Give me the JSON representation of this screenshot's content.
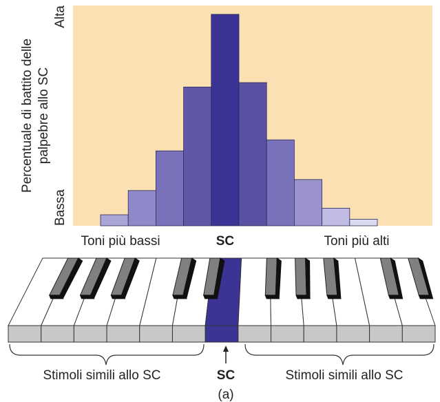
{
  "chart_data": {
    "type": "bar",
    "categories": [
      null,
      null,
      null,
      null,
      "SC",
      null,
      null,
      null,
      null,
      null
    ],
    "values": [
      5,
      16,
      34,
      63,
      96,
      65,
      39,
      21,
      8,
      3
    ],
    "colors": [
      "#aaa4d7",
      "#9089c9",
      "#7a71bb",
      "#6157a9",
      "#3b3494",
      "#5a50a4",
      "#7a71bb",
      "#9a93cc",
      "#bfbbe2",
      "#dcdaf0"
    ],
    "background": "#fbe0b4",
    "ylim": [
      0,
      100
    ],
    "yticks": [
      {
        "value": 0,
        "label": "Bassa"
      },
      {
        "value": 100,
        "label": "Alta"
      }
    ],
    "y_label": [
      "Percentuale di battito delle",
      "palpebre allo SC"
    ],
    "annotations": [
      "Toni più bassi",
      "Toni più alti"
    ]
  },
  "keyboard": {
    "left_label": "Stimoli simili allo SC",
    "center_label": "SC",
    "right_label": "Stimoli simili allo SC",
    "caption": "(a)"
  }
}
